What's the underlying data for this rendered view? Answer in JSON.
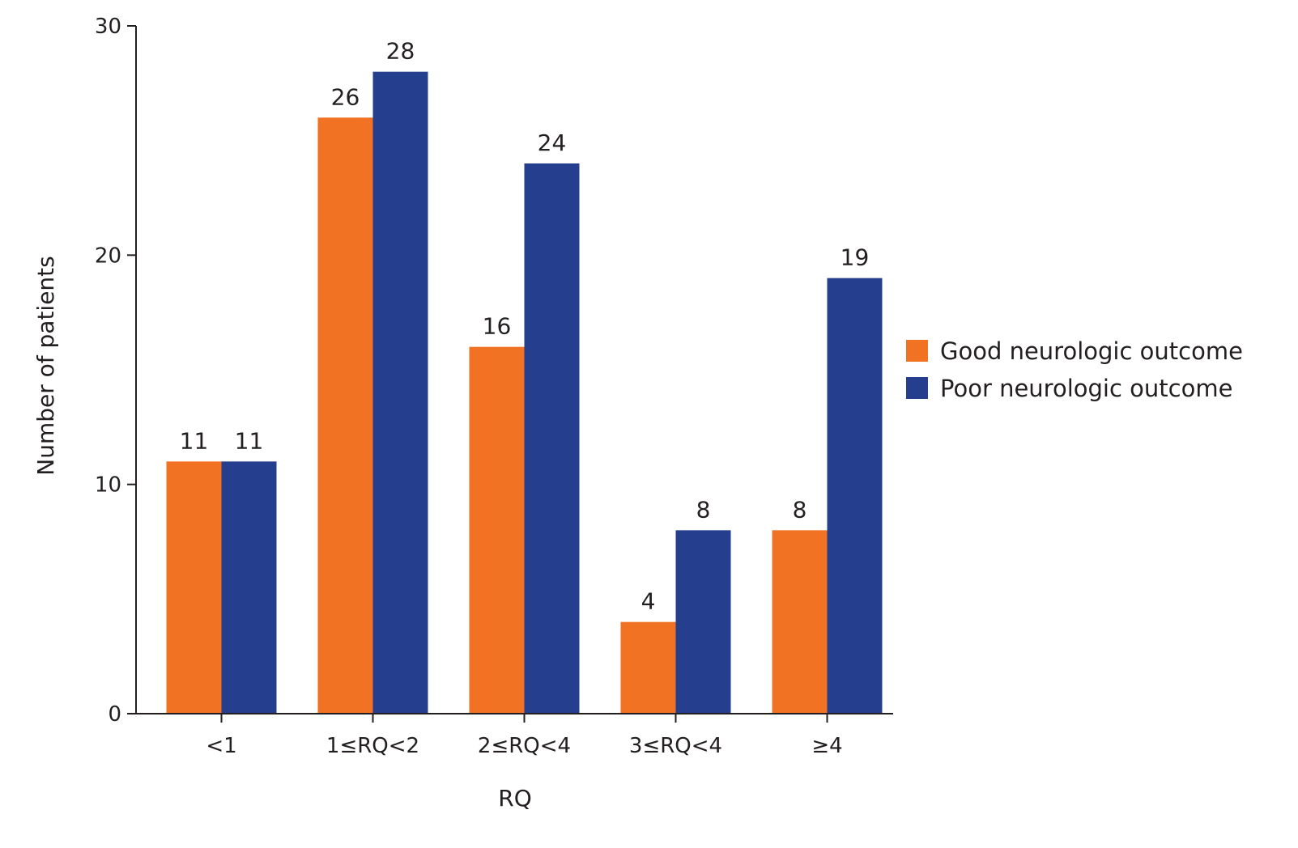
{
  "chart_data": {
    "type": "bar",
    "title": "",
    "xlabel": "RQ",
    "ylabel": "Number of patients",
    "ylim": [
      0,
      30
    ],
    "yticks": [
      0,
      10,
      20,
      30
    ],
    "grid": false,
    "legend_position": "right",
    "categories": [
      "<1",
      "1≤RQ<2",
      "2≤RQ<4",
      "3≤RQ<4",
      "≥4"
    ],
    "series": [
      {
        "name": "Good neurologic outcome",
        "color": "#f07222",
        "values": [
          11,
          26,
          16,
          4,
          8
        ]
      },
      {
        "name": "Poor neurologic outcome",
        "color": "#253f8e",
        "values": [
          11,
          28,
          24,
          8,
          19
        ]
      }
    ]
  }
}
